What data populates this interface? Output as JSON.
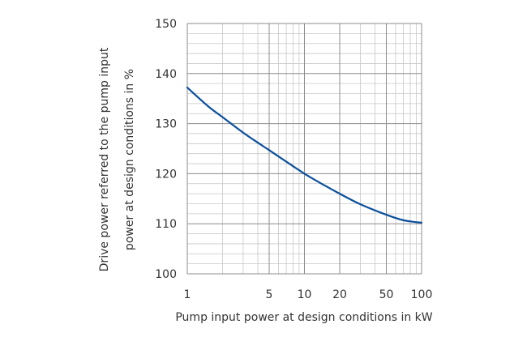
{
  "chart_data": {
    "type": "line",
    "title": "",
    "xlabel": "Pump input power at design conditions in kW",
    "ylabel_lines": [
      "Drive power referred to the pump input",
      "power at design conditions in %"
    ],
    "x_scale": "log",
    "xlim": [
      1,
      100
    ],
    "ylim": [
      100,
      150
    ],
    "x_ticks": [
      {
        "value": 1,
        "label": "1"
      },
      {
        "value": 5,
        "label": "5"
      },
      {
        "value": 10,
        "label": "10"
      },
      {
        "value": 20,
        "label": "20"
      },
      {
        "value": 50,
        "label": "50"
      },
      {
        "value": 100,
        "label": "100"
      }
    ],
    "y_ticks": [
      {
        "value": 100,
        "label": "100"
      },
      {
        "value": 110,
        "label": "110"
      },
      {
        "value": 120,
        "label": "120"
      },
      {
        "value": 130,
        "label": "130"
      },
      {
        "value": 140,
        "label": "140"
      },
      {
        "value": 150,
        "label": "150"
      }
    ],
    "grid": true,
    "legend": "none",
    "series": [
      {
        "color": "#0b4f9c",
        "points": [
          {
            "x": 1,
            "y": 137.2
          },
          {
            "x": 1.5,
            "y": 133.5
          },
          {
            "x": 2,
            "y": 131.3
          },
          {
            "x": 3,
            "y": 128.2
          },
          {
            "x": 4,
            "y": 126.2
          },
          {
            "x": 5,
            "y": 124.7
          },
          {
            "x": 7,
            "y": 122.4
          },
          {
            "x": 10,
            "y": 120.0
          },
          {
            "x": 15,
            "y": 117.6
          },
          {
            "x": 20,
            "y": 116.0
          },
          {
            "x": 30,
            "y": 113.9
          },
          {
            "x": 50,
            "y": 111.8
          },
          {
            "x": 70,
            "y": 110.7
          },
          {
            "x": 100,
            "y": 110.2
          }
        ]
      }
    ]
  },
  "colors": {
    "grid_major": "#8c8c8c",
    "grid_minor": "#c8c8c8",
    "text": "#333333"
  }
}
